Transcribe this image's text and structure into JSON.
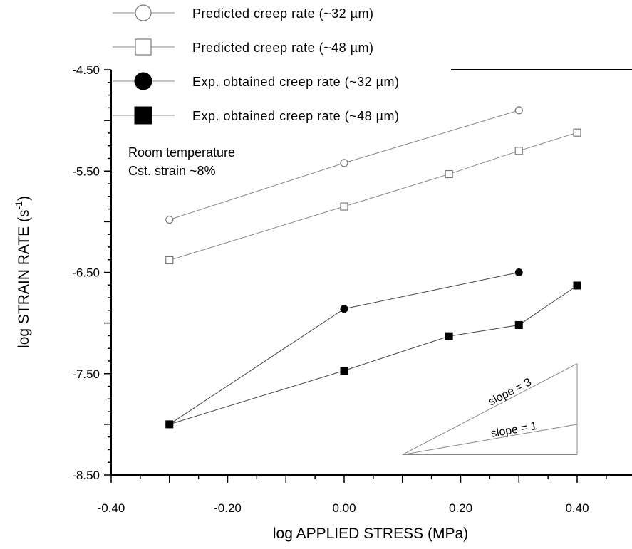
{
  "chart_data": {
    "type": "scatter",
    "title": "",
    "xlabel": "log APPLIED STRESS (MPa)",
    "ylabel": "log STRAIN RATE (s",
    "ylabel_superscript": "-1",
    "ylabel_suffix": ")",
    "xlim": [
      -0.4,
      0.4
    ],
    "ylim": [
      -8.5,
      -4.5
    ],
    "x_ticks": [
      "-0.40",
      "-0.20",
      "0.00",
      "0.20",
      "0.40"
    ],
    "y_ticks": [
      "-4.50",
      "-5.50",
      "-6.50",
      "-7.50",
      "-8.50"
    ],
    "grid": false,
    "legend_position": "top",
    "annotations": [
      "Room temperature",
      "Cst. strain ~8%"
    ],
    "series": [
      {
        "name": "Predicted creep rate (~32 µm)",
        "marker": "circle-open",
        "color": "#7a7a7a",
        "x": [
          -0.3,
          0.0,
          0.3
        ],
        "y": [
          -5.98,
          -5.42,
          -4.9
        ]
      },
      {
        "name": "Predicted creep rate (~48 µm)",
        "marker": "square-open",
        "color": "#7a7a7a",
        "x": [
          -0.3,
          0.0,
          0.18,
          0.3,
          0.4
        ],
        "y": [
          -6.38,
          -5.85,
          -5.53,
          -5.3,
          -5.12
        ]
      },
      {
        "name": "Exp. obtained creep rate (~32 µm)",
        "marker": "circle-filled",
        "color": "#000000",
        "x": [
          -0.3,
          0.0,
          0.3
        ],
        "y": [
          -8.0,
          -6.86,
          -6.5
        ]
      },
      {
        "name": "Exp. obtained creep rate (~48 µm)",
        "marker": "square-filled",
        "color": "#000000",
        "x": [
          -0.3,
          0.0,
          0.18,
          0.3,
          0.4
        ],
        "y": [
          -8.0,
          -7.47,
          -7.13,
          -7.02,
          -6.63
        ]
      }
    ],
    "slope_triangle": {
      "labels": [
        "slope = 3",
        "slope = 1"
      ],
      "x_start": 0.1,
      "x_end": 0.4,
      "y_base": -8.3,
      "slopes": [
        3,
        1
      ]
    }
  }
}
